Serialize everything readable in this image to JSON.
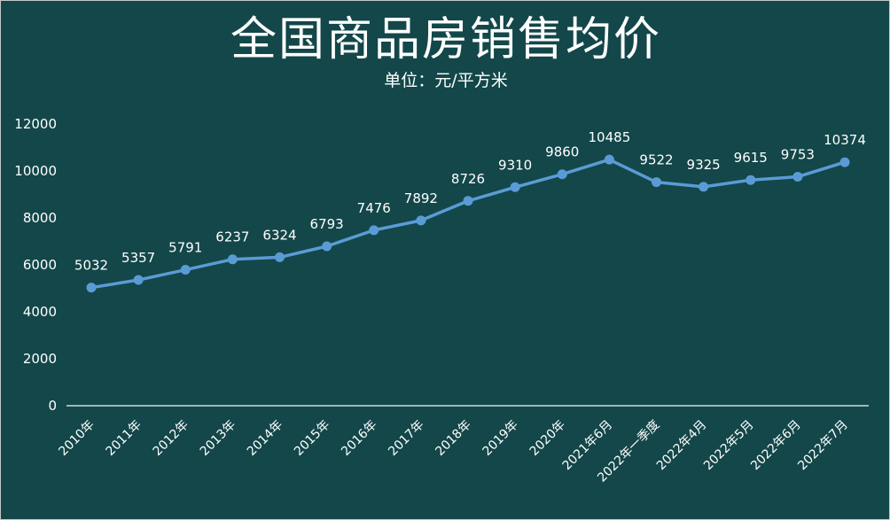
{
  "chart_data": {
    "type": "line",
    "title": "全国商品房销售均价",
    "subtitle": "单位：元/平方米",
    "categories": [
      "2010年",
      "2011年",
      "2012年",
      "2013年",
      "2014年",
      "2015年",
      "2016年",
      "2017年",
      "2018年",
      "2019年",
      "2020年",
      "2021年6月",
      "2022年一季度",
      "2022年4月",
      "2022年5月",
      "2022年6月",
      "2022年7月"
    ],
    "series": [
      {
        "values": [
          5032,
          5357,
          5791,
          6237,
          6324,
          6793,
          7476,
          7892,
          8726,
          9310,
          9860,
          10485,
          9522,
          9325,
          9615,
          9753,
          10374
        ]
      }
    ],
    "ylim": [
      0,
      12000
    ],
    "yticks": [
      0,
      2000,
      4000,
      6000,
      8000,
      10000,
      12000
    ],
    "grid": false,
    "legend": "none",
    "colors": {
      "background": "#13474a",
      "line": "#5b9bd5",
      "text": "#ffffff",
      "axis": "#d9d9d9"
    }
  }
}
